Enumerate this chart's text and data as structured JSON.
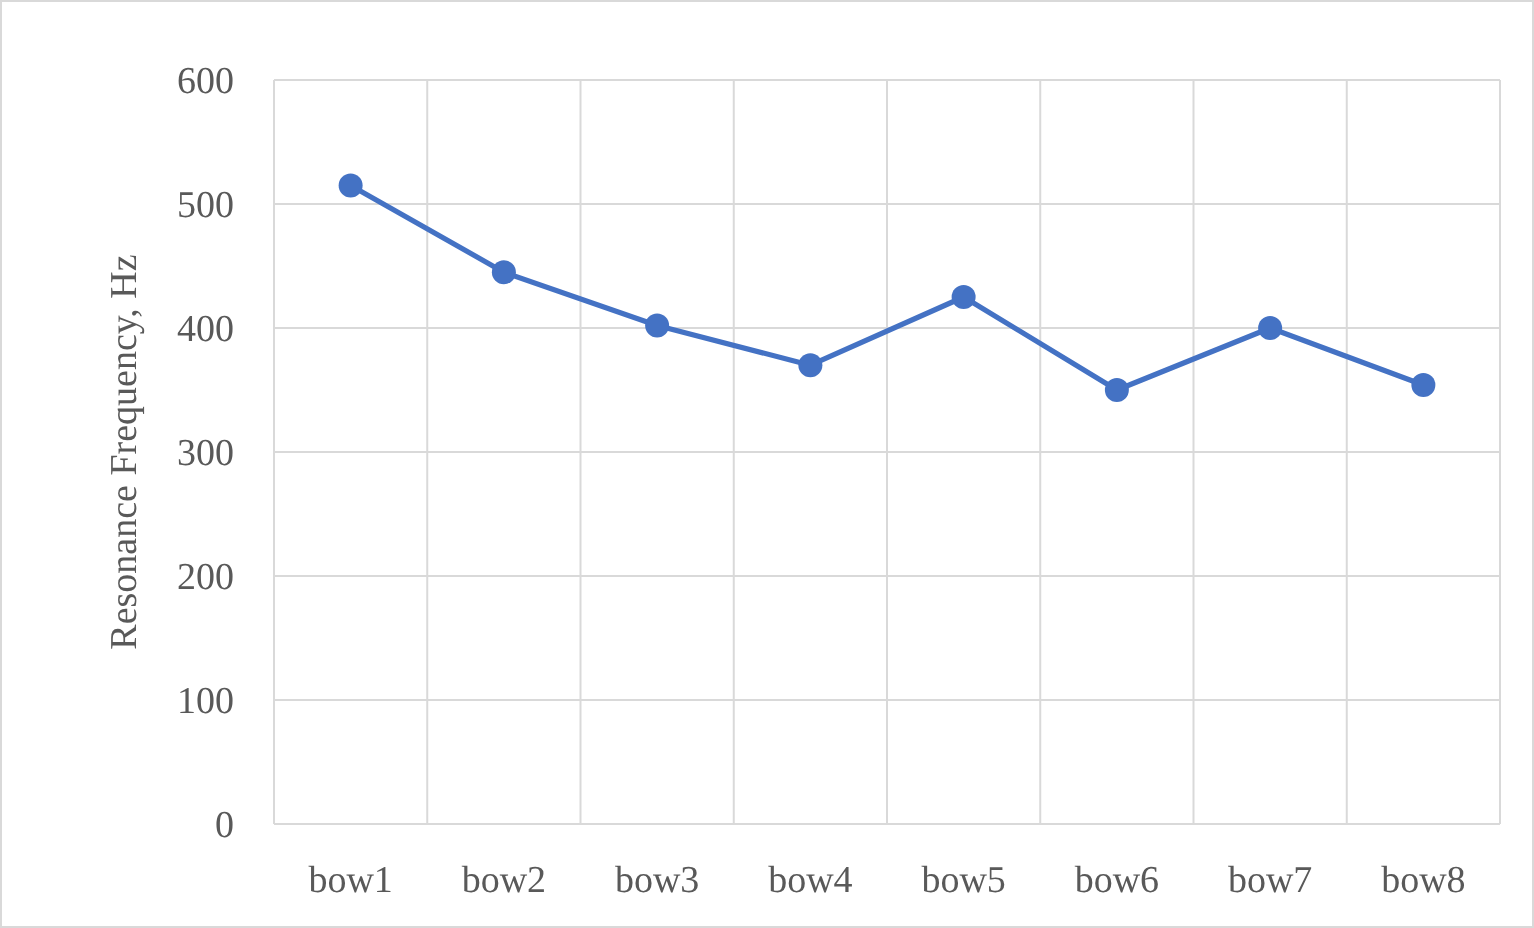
{
  "chart_data": {
    "type": "line",
    "ylabel": "Resonance Frequency, Hz",
    "categories": [
      "bow1",
      "bow2",
      "bow3",
      "bow4",
      "bow5",
      "bow6",
      "bow7",
      "bow8"
    ],
    "series": [
      {
        "color": "#4472c4",
        "values": [
          515,
          445,
          402,
          370,
          425,
          350,
          400,
          354
        ]
      }
    ],
    "ylim": [
      0,
      600
    ],
    "yticks": [
      0,
      100,
      200,
      300,
      400,
      500,
      600
    ],
    "grid": true,
    "marker": "circle",
    "line_style": "solid"
  }
}
